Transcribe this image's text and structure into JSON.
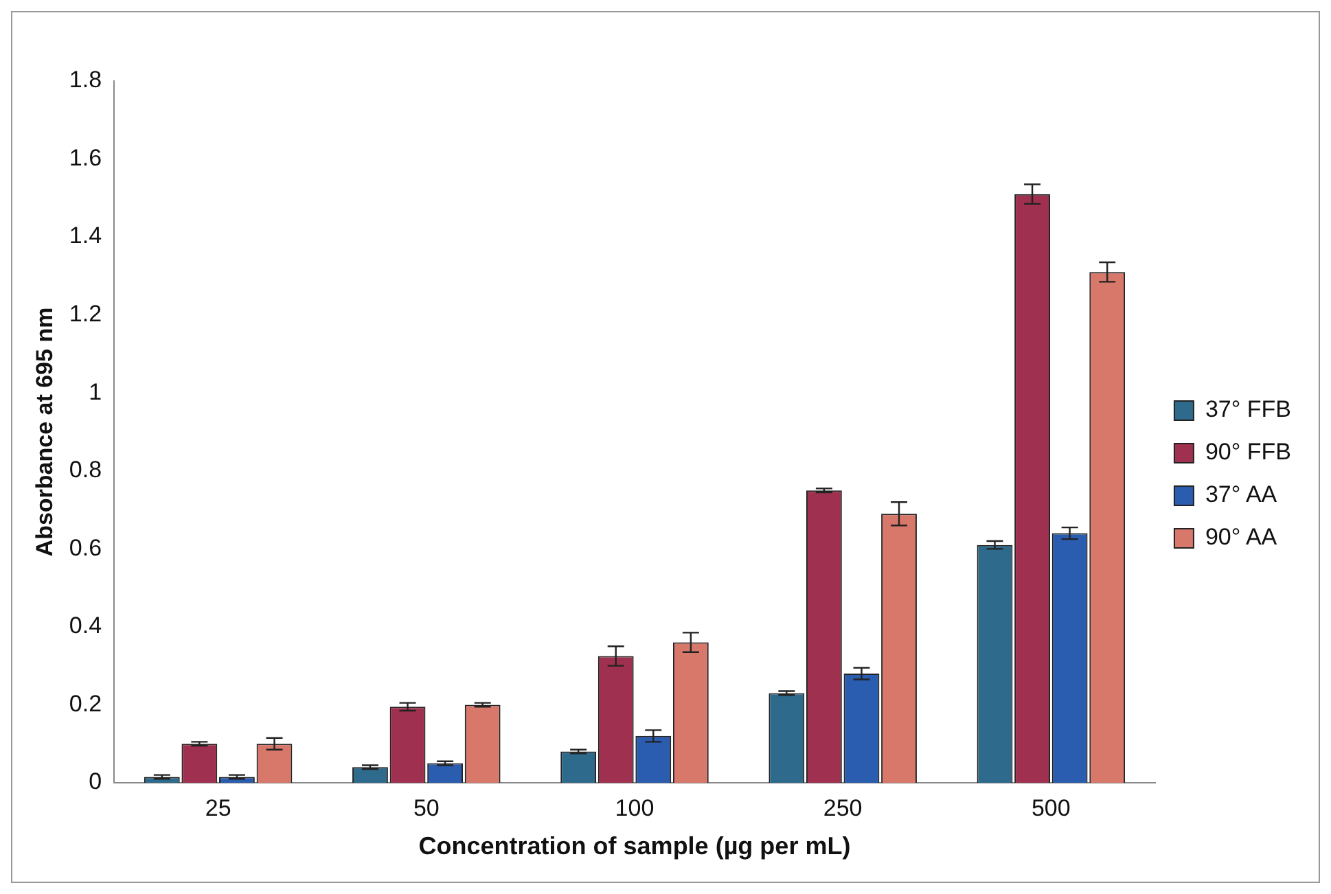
{
  "chart_data": {
    "type": "bar",
    "xlabel": "Concentration of sample (µg per mL)",
    "ylabel": "Absorbance at 695 nm",
    "categories": [
      "25",
      "50",
      "100",
      "250",
      "500"
    ],
    "series": [
      {
        "name": "37° FFB",
        "color": "#2e6a8c",
        "values": [
          0.015,
          0.04,
          0.08,
          0.23,
          0.61
        ],
        "errors": [
          0.005,
          0.005,
          0.005,
          0.005,
          0.01
        ]
      },
      {
        "name": "90° FFB",
        "color": "#a0304f",
        "values": [
          0.1,
          0.195,
          0.325,
          0.75,
          1.51
        ],
        "errors": [
          0.005,
          0.01,
          0.025,
          0.005,
          0.025
        ]
      },
      {
        "name": "37° AA",
        "color": "#2a5cb0",
        "values": [
          0.015,
          0.05,
          0.12,
          0.28,
          0.64
        ],
        "errors": [
          0.005,
          0.005,
          0.015,
          0.015,
          0.015
        ]
      },
      {
        "name": "90° AA",
        "color": "#d8786a",
        "values": [
          0.1,
          0.2,
          0.36,
          0.69,
          1.31
        ],
        "errors": [
          0.015,
          0.005,
          0.025,
          0.03,
          0.025
        ]
      }
    ],
    "ylim": [
      0,
      1.8
    ],
    "yticks": [
      0,
      0.2,
      0.4,
      0.6,
      0.8,
      1,
      1.2,
      1.4,
      1.6,
      1.8
    ],
    "grid": false,
    "legend": "right"
  }
}
